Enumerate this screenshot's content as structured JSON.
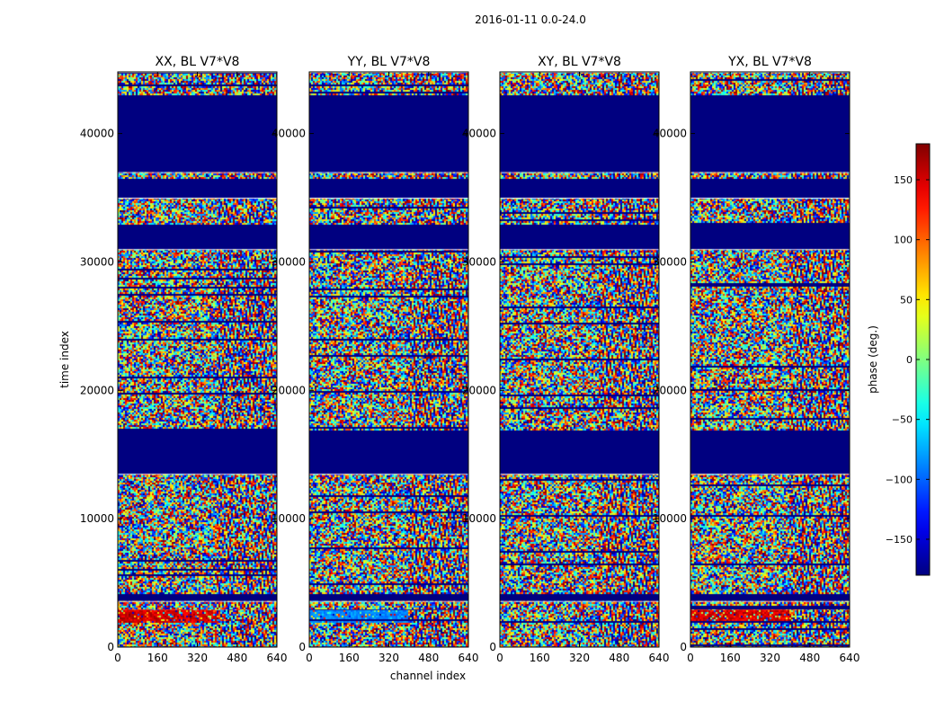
{
  "suptitle": "2016-01-11 0.0-24.0",
  "xlabel": "channel index",
  "ylabel": "time index",
  "colorbar_label": "phase (deg.)",
  "chart_data": {
    "type": "heatmap",
    "x_range": [
      0,
      640
    ],
    "y_range": [
      0,
      44800
    ],
    "x_ticks": [
      0,
      160,
      320,
      480,
      640
    ],
    "y_ticks": [
      0,
      10000,
      20000,
      30000,
      40000
    ],
    "color_range": [
      -180,
      180
    ],
    "colorbar_ticks": [
      -150,
      -100,
      -50,
      0,
      50,
      100,
      150
    ],
    "colormap": "jet",
    "time_bands": [
      {
        "y0": 0,
        "y1": 2000,
        "pattern": "noise"
      },
      {
        "y0": 2000,
        "y1": 3000,
        "pattern": "special"
      },
      {
        "y0": 3000,
        "y1": 3600,
        "pattern": "noise"
      },
      {
        "y0": 3600,
        "y1": 4200,
        "pattern": "flag"
      },
      {
        "y0": 4200,
        "y1": 13500,
        "pattern": "noise"
      },
      {
        "y0": 13500,
        "y1": 17000,
        "pattern": "flag"
      },
      {
        "y0": 17000,
        "y1": 31000,
        "pattern": "noise"
      },
      {
        "y0": 31000,
        "y1": 33000,
        "pattern": "flag"
      },
      {
        "y0": 33000,
        "y1": 35000,
        "pattern": "noise"
      },
      {
        "y0": 35000,
        "y1": 36500,
        "pattern": "flag"
      },
      {
        "y0": 36500,
        "y1": 37000,
        "pattern": "noise"
      },
      {
        "y0": 37000,
        "y1": 43000,
        "pattern": "flag"
      },
      {
        "y0": 43000,
        "y1": 44800,
        "pattern": "noise"
      }
    ],
    "panels": [
      {
        "title": "XX, BL V7*V8",
        "special": "red"
      },
      {
        "title": "YY, BL V7*V8",
        "special": "blue"
      },
      {
        "title": "XY, BL V7*V8",
        "special": "noise"
      },
      {
        "title": "YX, BL V7*V8",
        "special": "red"
      }
    ]
  }
}
